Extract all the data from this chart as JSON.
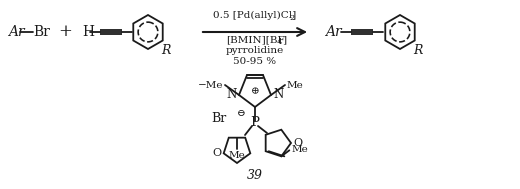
{
  "bg_color": "#ffffff",
  "line_color": "#1a1a1a",
  "fig_width": 5.2,
  "fig_height": 1.89,
  "dpi": 100,
  "arrow_above": "0.5 [Pd(allyl)Cl]",
  "arrow_above_sub": "2",
  "arrow_line1": "[BMIN][BF",
  "arrow_line1_sub": "4",
  "arrow_line1_end": "]",
  "arrow_line2": "pyrrolidine",
  "arrow_line3": "50-95 %",
  "compound_label": "39"
}
